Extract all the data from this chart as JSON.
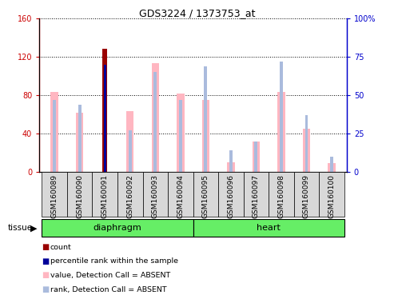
{
  "title": "GDS3224 / 1373753_at",
  "samples": [
    "GSM160089",
    "GSM160090",
    "GSM160091",
    "GSM160092",
    "GSM160093",
    "GSM160094",
    "GSM160095",
    "GSM160096",
    "GSM160097",
    "GSM160098",
    "GSM160099",
    "GSM160100"
  ],
  "tissue_groups": [
    {
      "label": "diaphragm",
      "start": 0,
      "end": 5
    },
    {
      "label": "heart",
      "start": 6,
      "end": 11
    }
  ],
  "value_absent": [
    83,
    62,
    0,
    63,
    113,
    82,
    75,
    10,
    32,
    83,
    45,
    9
  ],
  "rank_absent": [
    47,
    44,
    0,
    27,
    65,
    47,
    69,
    14,
    20,
    72,
    37,
    10
  ],
  "count_value": [
    0,
    0,
    128,
    0,
    0,
    0,
    0,
    0,
    0,
    0,
    0,
    0
  ],
  "percentile_rank_value": [
    0,
    0,
    70,
    0,
    0,
    0,
    0,
    0,
    0,
    0,
    0,
    0
  ],
  "ylim_left": [
    0,
    160
  ],
  "ylim_right": [
    0,
    100
  ],
  "yticks_left": [
    0,
    40,
    80,
    120,
    160
  ],
  "yticks_right": [
    0,
    25,
    50,
    75,
    100
  ],
  "yticklabels_left": [
    "0",
    "40",
    "80",
    "120",
    "160"
  ],
  "yticklabels_right": [
    "0",
    "25",
    "50",
    "75",
    "100%"
  ],
  "color_count": "#990000",
  "color_percentile": "#000099",
  "color_value_absent": "#FFB6C1",
  "color_rank_absent": "#AABBDD",
  "bg_color": "#d8d8d8",
  "tissue_color": "#66EE66",
  "left_axis_color": "#CC0000",
  "right_axis_color": "#0000CC",
  "legend_items": [
    {
      "color": "#990000",
      "label": "count"
    },
    {
      "color": "#000099",
      "label": "percentile rank within the sample"
    },
    {
      "color": "#FFB6C1",
      "label": "value, Detection Call = ABSENT"
    },
    {
      "color": "#AABBDD",
      "label": "rank, Detection Call = ABSENT"
    }
  ]
}
